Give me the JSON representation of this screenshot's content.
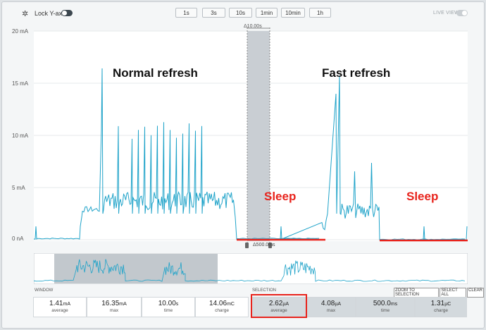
{
  "toolbar": {
    "lock_label": "Lock Y-axis",
    "live_label": "LIVE VIEW",
    "time_buttons": [
      "1s",
      "3s",
      "10s",
      "1min",
      "10min",
      "1h"
    ]
  },
  "chart": {
    "y_ticks": [
      "20 mA",
      "15 mA",
      "10 mA",
      "5 mA",
      "0 nA"
    ],
    "selection_delta_top": "Δ10.00s",
    "selection_delta_bottom": "Δ500.0ms",
    "trace_color": "#1fa3c9",
    "highlight_color": "#e8231c"
  },
  "annotations": {
    "normal": "Normal refresh",
    "fast": "Fast refresh",
    "sleep1": "Sleep",
    "sleep2": "Sleep"
  },
  "stats": {
    "window_label": "WINDOW",
    "selection_label": "SELECTION",
    "actions": [
      "ZOOM TO SELECTION",
      "SELECT ALL",
      "CLEAR"
    ],
    "window": [
      {
        "value": "1.41",
        "unit": "mA",
        "name": "average"
      },
      {
        "value": "16.35",
        "unit": "mA",
        "name": "max"
      },
      {
        "value": "10.00",
        "unit": "s",
        "name": "time"
      },
      {
        "value": "14.06",
        "unit": "mC",
        "name": "charge"
      }
    ],
    "selection": [
      {
        "value": "2.62",
        "unit": "µA",
        "name": "average"
      },
      {
        "value": "4.08",
        "unit": "µA",
        "name": "max"
      },
      {
        "value": "500.0",
        "unit": "ms",
        "name": "time"
      },
      {
        "value": "1.31",
        "unit": "µC",
        "name": "charge"
      }
    ]
  }
}
